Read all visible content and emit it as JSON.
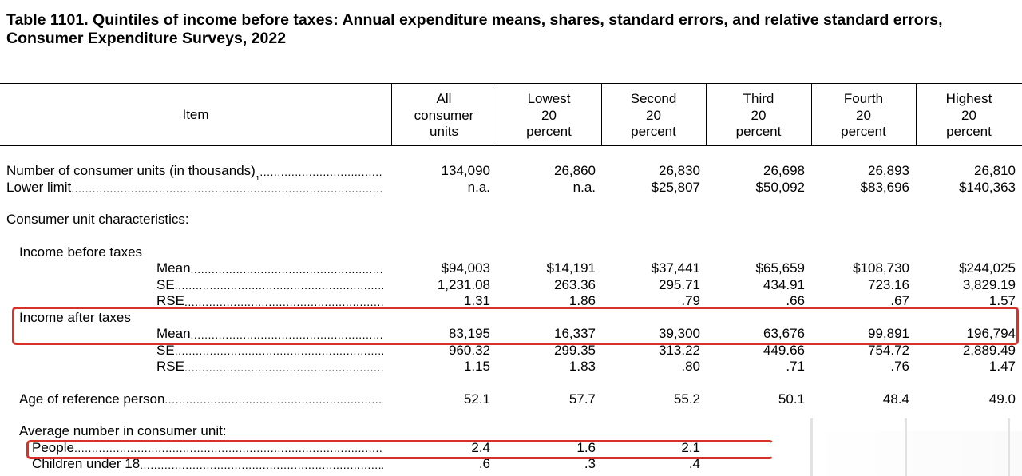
{
  "title": "Table 1101. Quintiles of income before taxes: Annual expenditure means, shares, standard errors, and relative standard errors, Consumer Expenditure Surveys, 2022",
  "header": {
    "item": "Item",
    "columns": [
      [
        "All",
        "consumer",
        "units"
      ],
      [
        "Lowest",
        "20",
        "percent"
      ],
      [
        "Second",
        "20",
        "percent"
      ],
      [
        "Third",
        "20",
        "percent"
      ],
      [
        "Fourth",
        "20",
        "percent"
      ],
      [
        "Highest",
        "20",
        "percent"
      ]
    ]
  },
  "dots": "................................................................................................................................................................",
  "rows": {
    "num_units": {
      "label": "Number of consumer units (in thousands)",
      "sup": "1",
      "values": [
        "134,090",
        "26,860",
        "26,830",
        "26,698",
        "26,893",
        "26,810"
      ]
    },
    "lower_limit": {
      "label": "Lower limit",
      "values": [
        "n.a.",
        "n.a.",
        "$25,807",
        "$50,092",
        "$83,696",
        "$140,363"
      ]
    },
    "cu_characteristics": {
      "label": "Consumer unit characteristics:"
    },
    "income_before_taxes": {
      "label": "Income before taxes"
    },
    "ibt_mean": {
      "label": "Mean",
      "values": [
        "$94,003",
        "$14,191",
        "$37,441",
        "$65,659",
        "$108,730",
        "$244,025"
      ]
    },
    "ibt_se": {
      "label": "SE",
      "values": [
        "1,231.08",
        "263.36",
        "295.71",
        "434.91",
        "723.16",
        "3,829.19"
      ]
    },
    "ibt_rse": {
      "label": "RSE",
      "values": [
        "1.31",
        "1.86",
        ".79",
        ".66",
        ".67",
        "1.57"
      ]
    },
    "income_after_taxes": {
      "label": "Income after taxes"
    },
    "iat_mean": {
      "label": "Mean",
      "values": [
        "83,195",
        "16,337",
        "39,300",
        "63,676",
        "99,891",
        "196,794"
      ]
    },
    "iat_se": {
      "label": "SE",
      "values": [
        "960.32",
        "299.35",
        "313.22",
        "449.66",
        "754.72",
        "2,889.49"
      ]
    },
    "iat_rse": {
      "label": "RSE",
      "values": [
        "1.15",
        "1.83",
        ".80",
        ".71",
        ".76",
        "1.47"
      ]
    },
    "age": {
      "label": "Age of reference person",
      "values": [
        "52.1",
        "57.7",
        "55.2",
        "50.1",
        "48.4",
        "49.0"
      ]
    },
    "avg_number": {
      "label": "Average number in consumer unit:"
    },
    "people": {
      "label": "People",
      "values": [
        "2.4",
        "1.6",
        "2.1",
        "",
        "",
        ""
      ]
    },
    "children": {
      "label": "Children under 18",
      "values": [
        ".6",
        ".3",
        ".4",
        "",
        "",
        ""
      ]
    }
  },
  "highlight_color": "#d8312a"
}
